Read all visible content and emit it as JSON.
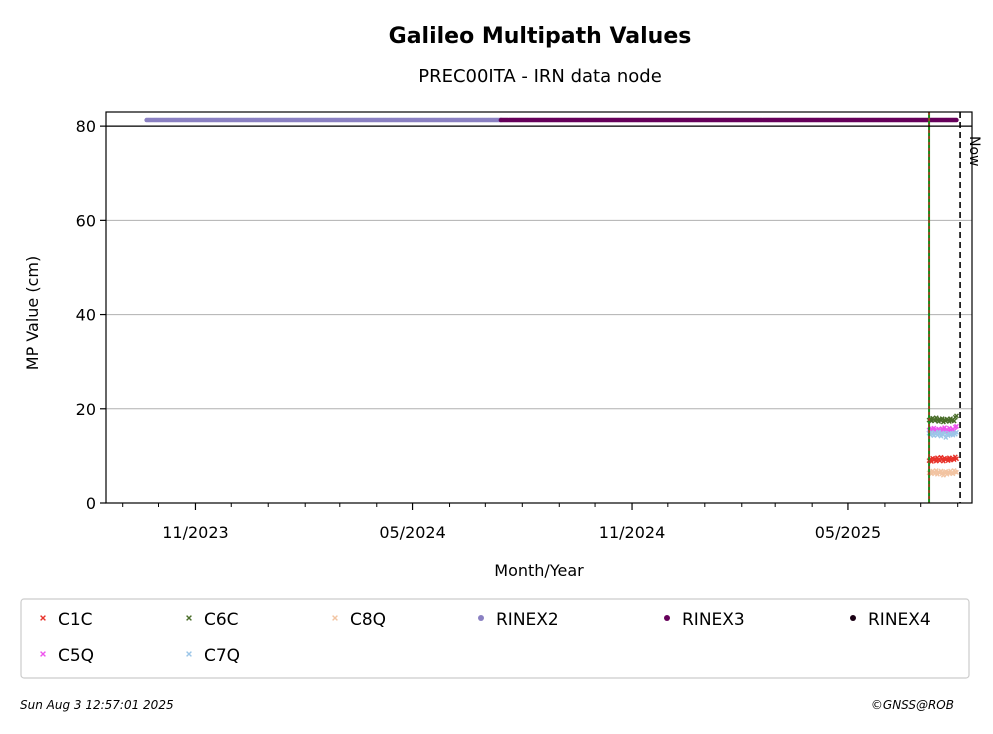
{
  "chart_data": {
    "type": "scatter",
    "title": "Galileo Multipath Values",
    "subtitle": "PREC00ITA - IRN data node",
    "xlabel": "Month/Year",
    "ylabel": "MP Value (cm)",
    "xlim": [
      "2023-08-18",
      "2025-08-13"
    ],
    "ylim": [
      0,
      83
    ],
    "x_ticks": [
      "2023-11-01",
      "2024-05-01",
      "2024-11-01",
      "2025-05-01"
    ],
    "x_tick_labels": [
      "11/2023",
      "05/2024",
      "11/2024",
      "05/2025"
    ],
    "y_ticks": [
      0,
      20,
      40,
      60,
      80
    ],
    "grid": "horizontal",
    "legend_placement": "bottom",
    "now_date": "2025-08-03",
    "now_label": "Now",
    "change_date": "2025-07-08",
    "series": [
      {
        "name": "C1C",
        "marker": "x",
        "color": "#e8332b",
        "x_range": [
          "2025-07-08",
          "2025-07-31"
        ],
        "y": [
          9.0,
          9.3,
          8.8,
          9.5,
          9.1,
          9.4,
          8.9,
          9.6,
          9.2,
          9.0,
          9.7,
          9.3,
          8.9,
          9.5,
          9.2,
          9.4,
          9.0,
          9.6,
          9.1,
          9.3,
          9.5,
          9.2,
          9.8,
          9.4
        ]
      },
      {
        "name": "C5Q",
        "marker": "x",
        "color": "#ee55ee",
        "x_range": [
          "2025-07-08",
          "2025-07-31"
        ],
        "y": [
          15.5,
          15.2,
          15.8,
          15.4,
          15.9,
          15.3,
          15.6,
          15.1,
          15.7,
          15.5,
          15.2,
          15.8,
          15.4,
          16.0,
          15.3,
          15.6,
          15.2,
          15.9,
          15.5,
          15.4,
          15.7,
          15.3,
          16.1,
          16.3
        ]
      },
      {
        "name": "C6C",
        "marker": "x",
        "color": "#4a6e2a",
        "x_range": [
          "2025-07-08",
          "2025-07-31"
        ],
        "y": [
          17.6,
          17.9,
          17.4,
          18.0,
          17.7,
          17.5,
          18.1,
          17.6,
          17.3,
          17.8,
          17.5,
          17.9,
          17.2,
          17.7,
          17.4,
          17.8,
          17.6,
          17.3,
          17.9,
          17.5,
          17.7,
          17.4,
          18.2,
          18.5
        ]
      },
      {
        "name": "C7Q",
        "marker": "x",
        "color": "#9cc6e8",
        "x_range": [
          "2025-07-08",
          "2025-07-31"
        ],
        "y": [
          14.8,
          14.5,
          15.0,
          14.6,
          14.3,
          14.9,
          14.7,
          14.4,
          15.1,
          14.6,
          14.2,
          14.8,
          14.5,
          14.9,
          13.9,
          14.6,
          14.3,
          14.8,
          14.5,
          14.7,
          14.4,
          14.9,
          14.6,
          15.0
        ]
      },
      {
        "name": "C8Q",
        "marker": "x",
        "color": "#f2c4a2",
        "x_range": [
          "2025-07-08",
          "2025-07-31"
        ],
        "y": [
          6.4,
          6.7,
          6.2,
          6.8,
          6.5,
          6.3,
          6.9,
          6.1,
          6.6,
          6.4,
          6.8,
          6.2,
          5.9,
          6.5,
          6.7,
          6.1,
          6.6,
          6.3,
          6.8,
          6.4,
          6.2,
          6.9,
          6.6,
          6.5
        ]
      },
      {
        "name": "RINEX2",
        "marker": "o",
        "color": "#8a80c2",
        "y": 81.3,
        "x_range": [
          "2023-09-21",
          "2024-07-14"
        ]
      },
      {
        "name": "RINEX3",
        "marker": "o",
        "color": "#66005a",
        "y": 81.3,
        "x_range": [
          "2024-07-14",
          "2025-07-31"
        ]
      },
      {
        "name": "RINEX4",
        "marker": "o",
        "color": "#1a0014"
      }
    ]
  },
  "footer": {
    "timestamp": "Sun Aug  3 12:57:01 2025",
    "copyright": "©GNSS@ROB"
  }
}
